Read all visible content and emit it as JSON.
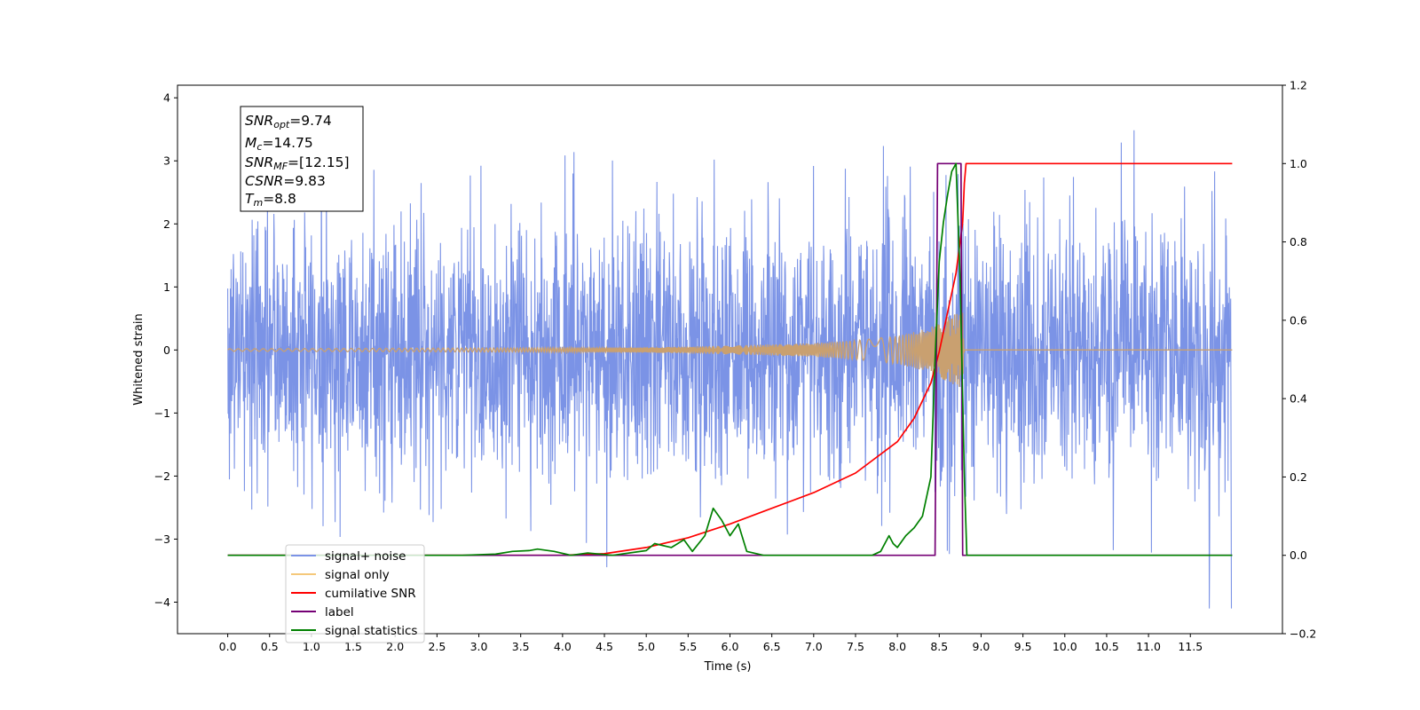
{
  "chart_data": {
    "type": "line",
    "xlabel": "Time (s)",
    "ylabel": "Whitened strain",
    "xlim": [
      -0.6,
      12.6
    ],
    "ylim": [
      -4.5,
      4.2
    ],
    "y2lim": [
      -0.2,
      1.2
    ],
    "x_ticks": [
      "0.0",
      "0.5",
      "1.0",
      "1.5",
      "2.0",
      "2.5",
      "3.0",
      "3.5",
      "4.0",
      "4.5",
      "5.0",
      "5.5",
      "6.0",
      "6.5",
      "7.0",
      "7.5",
      "8.0",
      "8.5",
      "9.0",
      "9.5",
      "10.0",
      "10.5",
      "11.0",
      "11.5"
    ],
    "y_ticks": [
      "−4",
      "−3",
      "−2",
      "−1",
      "0",
      "1",
      "2",
      "3",
      "4"
    ],
    "y2_ticks": [
      "−0.2",
      "0.0",
      "0.2",
      "0.4",
      "0.6",
      "0.8",
      "1.0",
      "1.2"
    ],
    "annotation": [
      {
        "base": "SNR",
        "sub": "opt",
        "value": "=9.74"
      },
      {
        "base": "M",
        "sub": "c",
        "value": "=14.75"
      },
      {
        "base": "SNR",
        "sub": "MF",
        "value": "=[12.15]"
      },
      {
        "base": "CSNR",
        "sub": "",
        "value": "=9.83"
      },
      {
        "base": "T",
        "sub": "m",
        "value": "=8.8"
      }
    ],
    "legend": {
      "placement": "lower-left",
      "entries": [
        "signal+ noise",
        "signal only",
        "cumilative SNR",
        "label",
        "signal statistics"
      ]
    },
    "series": [
      {
        "name": "signal+ noise",
        "axis": "left",
        "color": "#7b93e6",
        "description_envelope": {
          "t_start": 0.0,
          "t_end": 11.99,
          "std": 1.05,
          "max": 3.83,
          "min": -4.1
        }
      },
      {
        "name": "signal only",
        "axis": "left",
        "color": "#e8b45c",
        "amplitude": {
          "t": [
            0.0,
            5.0,
            6.0,
            7.0,
            7.5,
            8.0,
            8.3,
            8.5,
            8.6,
            8.7,
            8.78,
            8.8,
            12.0
          ],
          "a": [
            0.02,
            0.04,
            0.07,
            0.11,
            0.15,
            0.22,
            0.32,
            0.42,
            0.52,
            0.58,
            0.6,
            0.0,
            0.0
          ]
        }
      },
      {
        "name": "cumilative SNR",
        "axis": "right",
        "color": "#ff0000",
        "x": [
          0.0,
          4.0,
          4.5,
          5.0,
          5.5,
          6.0,
          6.5,
          7.0,
          7.5,
          8.0,
          8.2,
          8.4,
          8.5,
          8.6,
          8.7,
          8.78,
          8.8,
          8.82,
          12.0
        ],
        "y": [
          0.0,
          0.0,
          0.004,
          0.02,
          0.045,
          0.08,
          0.12,
          0.16,
          0.21,
          0.29,
          0.35,
          0.44,
          0.52,
          0.62,
          0.72,
          0.85,
          0.95,
          1.0,
          1.0
        ]
      },
      {
        "name": "label",
        "axis": "right",
        "color": "#750075",
        "x": [
          0.0,
          8.45,
          8.48,
          8.76,
          8.78,
          8.82,
          12.0
        ],
        "y": [
          0.0,
          0.0,
          1.0,
          1.0,
          0.0,
          0.0,
          0.0
        ]
      },
      {
        "name": "signal statistics",
        "axis": "right",
        "color": "#008000",
        "x": [
          0.0,
          2.8,
          3.2,
          3.4,
          3.6,
          3.7,
          3.9,
          4.1,
          4.3,
          4.6,
          5.0,
          5.1,
          5.3,
          5.45,
          5.55,
          5.7,
          5.8,
          5.9,
          6.0,
          6.1,
          6.2,
          6.4,
          6.8,
          7.4,
          7.7,
          7.8,
          7.9,
          7.95,
          8.0,
          8.1,
          8.2,
          8.3,
          8.4,
          8.45,
          8.5,
          8.55,
          8.6,
          8.65,
          8.7,
          8.75,
          8.8,
          8.83,
          12.0
        ],
        "y": [
          0.0,
          0.0,
          0.003,
          0.01,
          0.012,
          0.016,
          0.01,
          0.0,
          0.006,
          0.0,
          0.012,
          0.03,
          0.02,
          0.04,
          0.01,
          0.05,
          0.12,
          0.09,
          0.05,
          0.08,
          0.01,
          0.0,
          0.0,
          0.0,
          0.0,
          0.01,
          0.05,
          0.03,
          0.02,
          0.05,
          0.07,
          0.1,
          0.2,
          0.5,
          0.75,
          0.85,
          0.92,
          0.98,
          1.0,
          0.7,
          0.2,
          0.0,
          0.0
        ]
      }
    ]
  }
}
